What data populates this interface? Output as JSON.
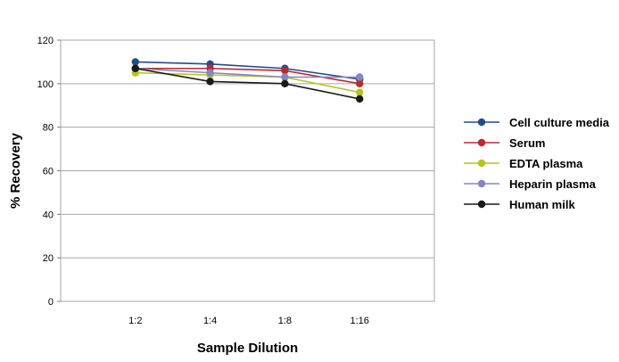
{
  "chart_data": {
    "type": "line",
    "categories": [
      "1:2",
      "1:4",
      "1:8",
      "1:16"
    ],
    "xlabel": "Sample Dilution",
    "ylabel": "% Recovery",
    "ylim": [
      0,
      120
    ],
    "yticks": [
      0,
      20,
      40,
      60,
      80,
      100,
      120
    ],
    "grid": "horizontal",
    "legend_position": "right",
    "series": [
      {
        "name": "Cell culture media",
        "color": "#1f4e8c",
        "values": [
          110,
          109,
          107,
          102
        ]
      },
      {
        "name": "Serum",
        "color": "#c0282d",
        "values": [
          107,
          107,
          106,
          100
        ]
      },
      {
        "name": "EDTA plasma",
        "color": "#b5c424",
        "values": [
          105,
          104,
          103,
          96
        ]
      },
      {
        "name": "Heparin plasma",
        "color": "#8585c2",
        "values": [
          107,
          105,
          103,
          103
        ]
      },
      {
        "name": "Human milk",
        "color": "#1a1a1a",
        "values": [
          107,
          101,
          100,
          93
        ]
      }
    ]
  }
}
